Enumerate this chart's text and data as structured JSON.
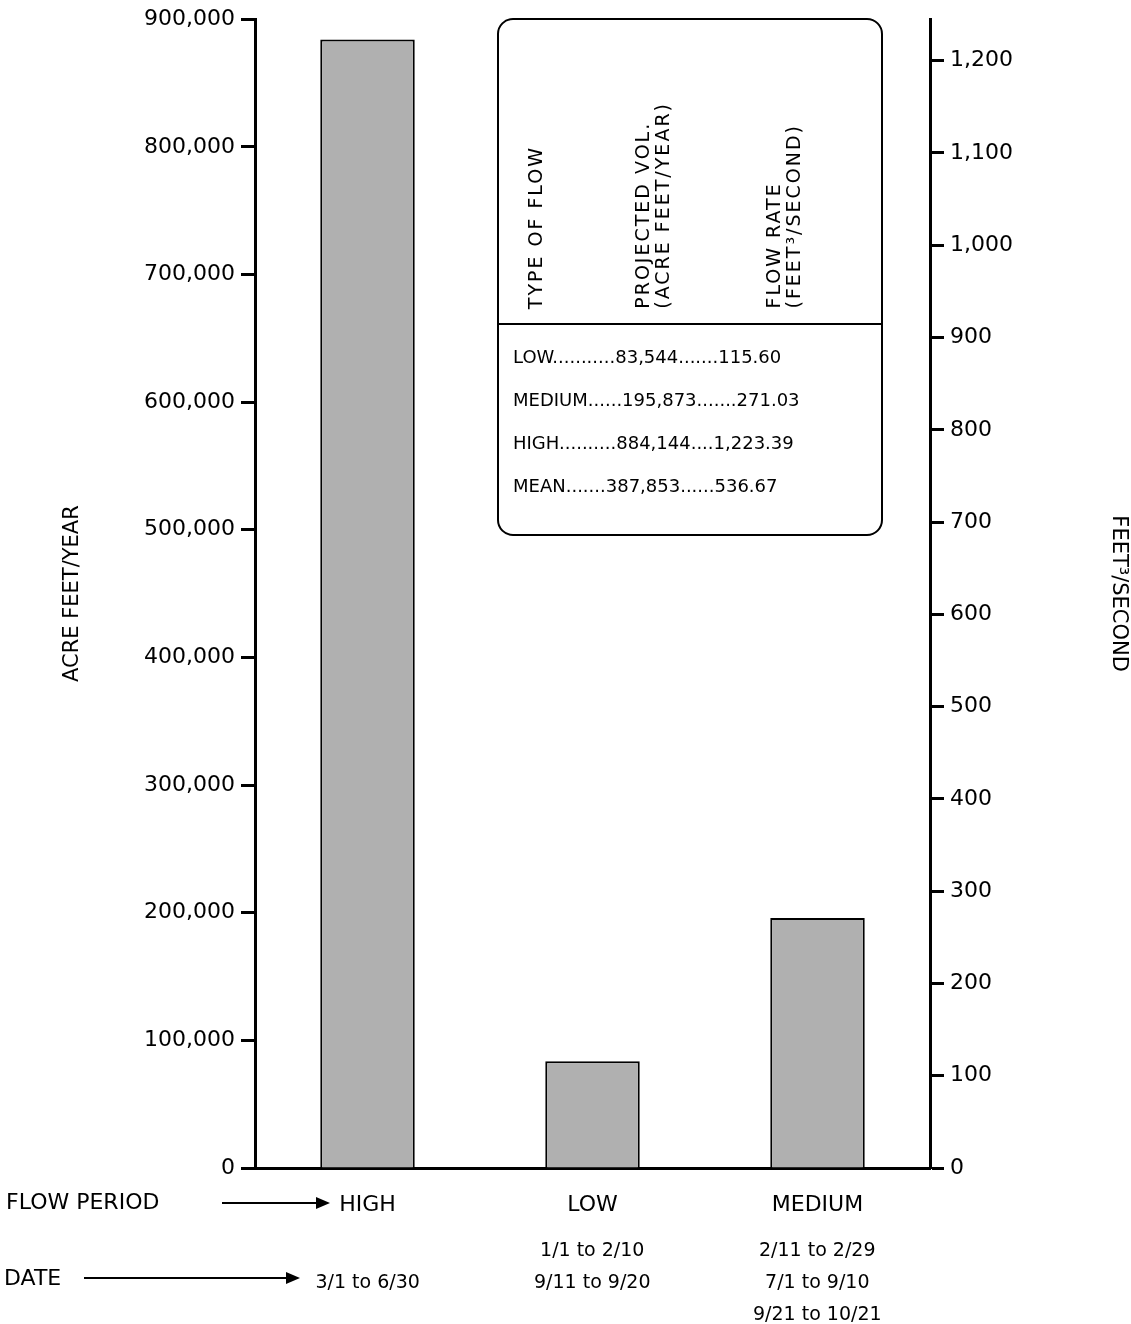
{
  "chart_data": {
    "type": "bar",
    "categories": [
      "HIGH",
      "LOW",
      "MEDIUM"
    ],
    "values": [
      884144,
      83544,
      195873
    ],
    "color": "#b0b0b0",
    "xlabel": "FLOW PERIOD",
    "ylabel": "ACRE FEET/YEAR",
    "y2label": "FEET³/SECOND",
    "ylim": [
      0,
      900000
    ],
    "yticks": [
      {
        "value": 0,
        "label": "0"
      },
      {
        "value": 100000,
        "label": "100,000"
      },
      {
        "value": 200000,
        "label": "200,000"
      },
      {
        "value": 300000,
        "label": "300,000"
      },
      {
        "value": 400000,
        "label": "400,000"
      },
      {
        "value": 500000,
        "label": "500,000"
      },
      {
        "value": 600000,
        "label": "600,000"
      },
      {
        "value": 700000,
        "label": "700,000"
      },
      {
        "value": 800000,
        "label": "800,000"
      },
      {
        "value": 900000,
        "label": "900,000"
      }
    ],
    "y2lim": [
      0,
      1245
    ],
    "y2ticks": [
      0,
      100,
      200,
      300,
      400,
      500,
      600,
      700,
      800,
      900,
      {
        "value": 1000,
        "label": "1,000"
      },
      {
        "value": 1100,
        "label": "1,100"
      },
      {
        "value": 1200,
        "label": "1,200"
      }
    ],
    "legend": false,
    "annotations": [
      "TYPE OF FLOW",
      "PROJECTED VOL.\n(ACRE FEET/YEAR)",
      "FLOW RATE\n(FEET³/SECOND)",
      "LOW...........83,544.......115.60",
      "MEDIUM......195,873.......271.03",
      "HIGH..........884,144....1,223.39",
      "MEAN.......387,853......536.67",
      "DATE",
      "3/1 to 6/30",
      "1/1 to 2/10\n9/11 to 9/20",
      "2/11 to 2/29\n7/1 to 9/10\n9/21 to 10/21"
    ]
  }
}
